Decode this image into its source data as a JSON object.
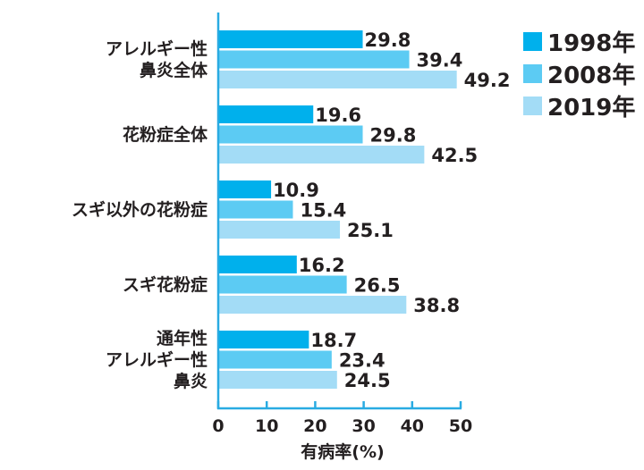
{
  "chart_data": {
    "type": "bar",
    "orientation": "horizontal",
    "categories": [
      [
        "アレルギー性",
        "鼻炎全体"
      ],
      [
        "花粉症全体"
      ],
      [
        "スギ以外の花粉症"
      ],
      [
        "スギ花粉症"
      ],
      [
        "通年性",
        "アレルギー性",
        "鼻炎"
      ]
    ],
    "series": [
      {
        "name": "1998年",
        "color": "#00b0ec",
        "values": [
          29.8,
          19.6,
          10.9,
          16.2,
          18.7
        ]
      },
      {
        "name": "2008年",
        "color": "#5ccbf3",
        "values": [
          39.4,
          29.8,
          15.4,
          26.5,
          23.4
        ]
      },
      {
        "name": "2019年",
        "color": "#a3dcf6",
        "values": [
          49.2,
          42.5,
          25.1,
          38.8,
          24.5
        ]
      }
    ],
    "xlabel": "有病率(%)",
    "xlim": [
      0,
      50
    ],
    "xticks": [
      "0",
      "10",
      "20",
      "30",
      "40",
      "50"
    ],
    "axis_color": "#29abe2",
    "legend": "top-right",
    "grid": false
  }
}
